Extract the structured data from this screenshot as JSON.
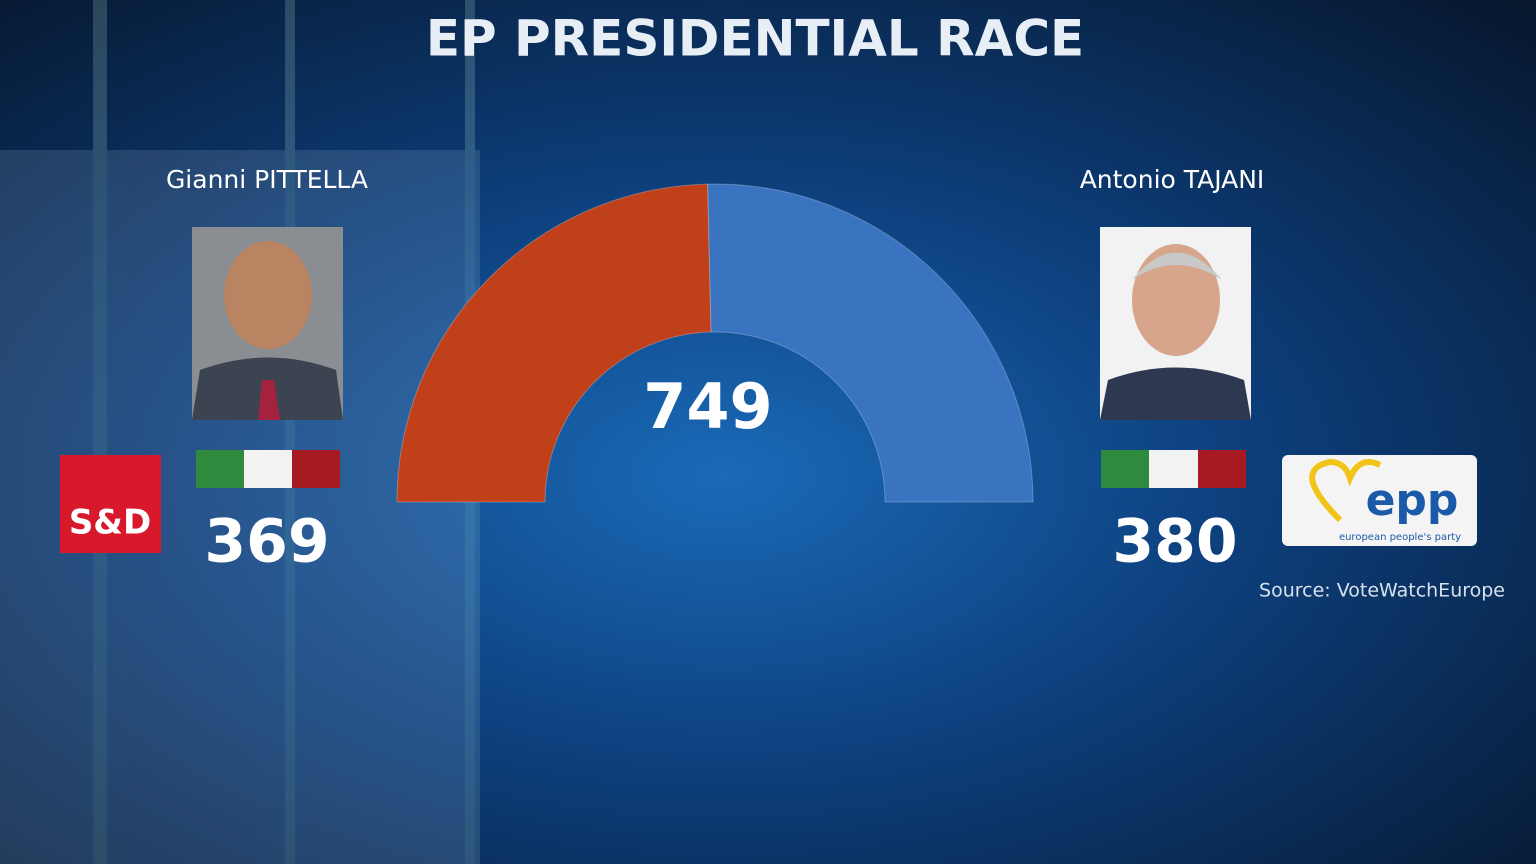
{
  "chart_data": {
    "type": "halfdonut",
    "title": "EP PRESIDENTIAL RACE",
    "categories": [
      "Gianni PITTELLA",
      "Antonio TAJANI"
    ],
    "values": [
      369,
      380
    ],
    "colors": [
      "#c0401a",
      "#3a74c0"
    ],
    "total": 749,
    "parties": [
      "S&D",
      "epp"
    ],
    "epp_tagline": "european people's party",
    "source": "Source: VoteWatchEurope"
  }
}
